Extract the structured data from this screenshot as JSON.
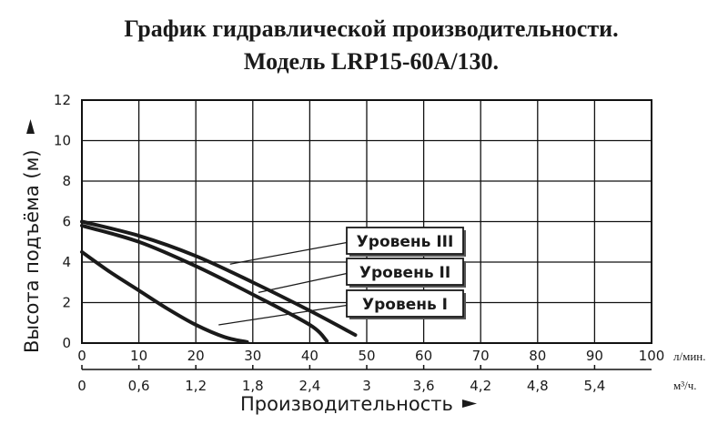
{
  "title_line1": "График гидравлической производительности.",
  "title_line2": "Модель LRP15-60A/130.",
  "chart_data": {
    "type": "line",
    "xlabel": "Производительность",
    "ylabel": "Высота подъёма (м)",
    "x_unit": "л/мин.",
    "x2_unit": "м³/ч.",
    "xlim": [
      0,
      100
    ],
    "ylim": [
      0,
      12
    ],
    "x_ticks": [
      "0",
      "10",
      "20",
      "30",
      "40",
      "50",
      "60",
      "70",
      "80",
      "90",
      "100"
    ],
    "x2_ticks": [
      "0",
      "0,6",
      "1,2",
      "1,8",
      "2,4",
      "3",
      "3,6",
      "4,2",
      "4,8",
      "5,4"
    ],
    "y_ticks": [
      "0",
      "2",
      "4",
      "6",
      "8",
      "10",
      "12"
    ],
    "grid": true,
    "series": [
      {
        "name": "Уровень III",
        "x": [
          0,
          10,
          20,
          30,
          40,
          48
        ],
        "y": [
          6.0,
          5.3,
          4.3,
          3.0,
          1.6,
          0.4
        ]
      },
      {
        "name": "Уровень II",
        "x": [
          0,
          10,
          20,
          30,
          40,
          43
        ],
        "y": [
          5.8,
          5.0,
          3.8,
          2.4,
          0.9,
          0.1
        ]
      },
      {
        "name": "Уровень I",
        "x": [
          0,
          5,
          10,
          15,
          20,
          25,
          29
        ],
        "y": [
          4.5,
          3.5,
          2.6,
          1.7,
          0.9,
          0.3,
          0.05
        ]
      }
    ]
  }
}
